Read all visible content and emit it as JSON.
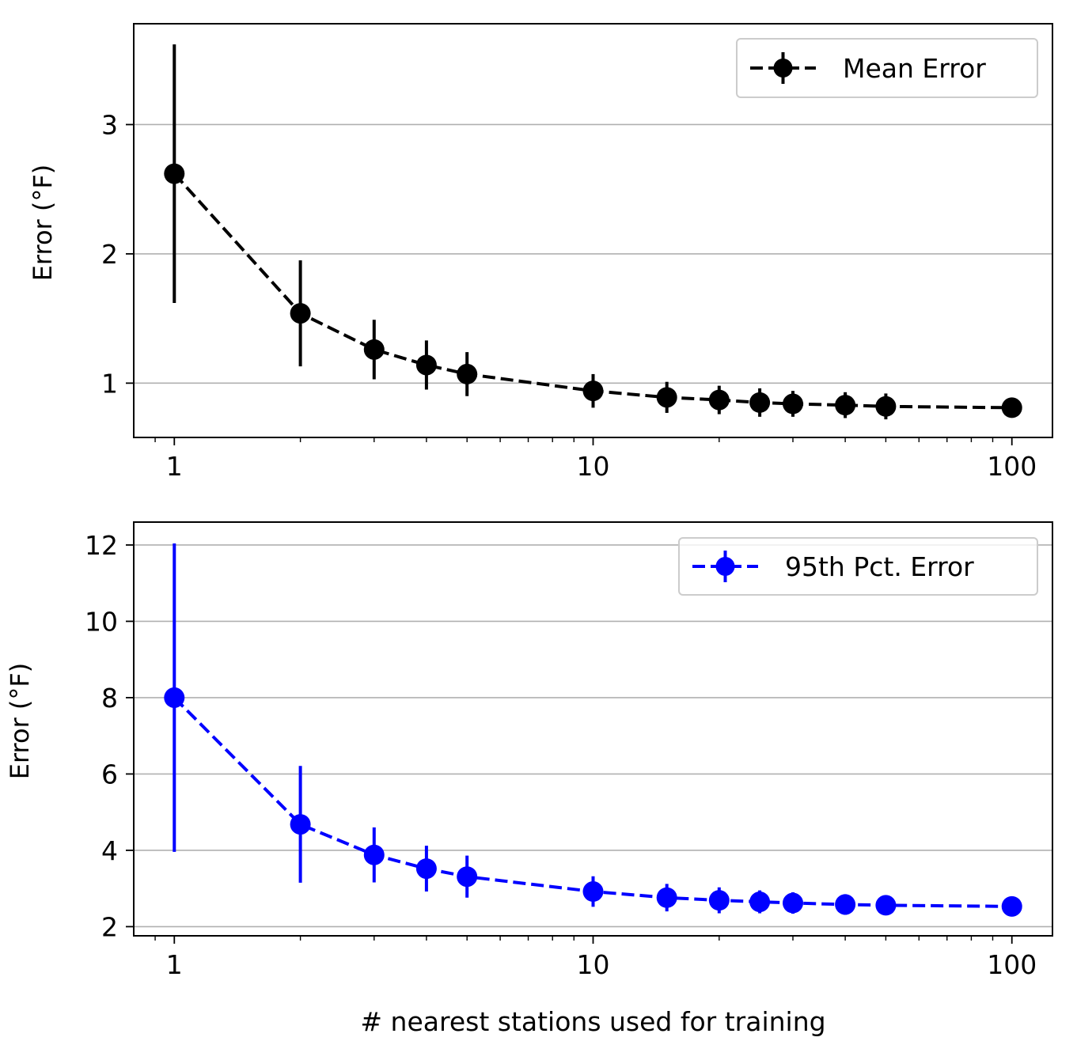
{
  "chart_data": [
    {
      "type": "line",
      "xscale": "log",
      "xlim": [
        0.8,
        125
      ],
      "ylim": [
        0.58,
        3.78
      ],
      "xticks": [
        1,
        10,
        100
      ],
      "xtick_labels": [
        "1",
        "10",
        "100"
      ],
      "yticks": [
        1,
        2,
        3
      ],
      "ytick_labels": [
        "1",
        "2",
        "3"
      ],
      "xlabel": "",
      "ylabel": "Error (°F)",
      "grid": "y-major",
      "legend": "upper right",
      "series": [
        {
          "name": "Mean Error",
          "color": "#000000",
          "linestyle": "dashed",
          "marker": "circle",
          "x": [
            1,
            2,
            3,
            4,
            5,
            10,
            15,
            20,
            25,
            30,
            40,
            50,
            100
          ],
          "y": [
            2.62,
            1.54,
            1.26,
            1.14,
            1.07,
            0.94,
            0.89,
            0.87,
            0.85,
            0.84,
            0.83,
            0.82,
            0.81
          ],
          "yerr": [
            1.0,
            0.41,
            0.23,
            0.19,
            0.17,
            0.13,
            0.12,
            0.11,
            0.11,
            0.1,
            0.1,
            0.1,
            0.05
          ]
        }
      ]
    },
    {
      "type": "line",
      "xscale": "log",
      "xlim": [
        0.8,
        125
      ],
      "ylim": [
        1.76,
        12.6
      ],
      "xticks": [
        1,
        10,
        100
      ],
      "xtick_labels": [
        "1",
        "10",
        "100"
      ],
      "yticks": [
        2,
        4,
        6,
        8,
        10,
        12
      ],
      "ytick_labels": [
        "2",
        "4",
        "6",
        "8",
        "10",
        "12"
      ],
      "xlabel": "# nearest stations used for training",
      "ylabel": "Error (°F)",
      "grid": "y-major",
      "legend": "upper right",
      "series": [
        {
          "name": "95th Pct. Error",
          "color": "#0000ff",
          "linestyle": "dashed",
          "marker": "circle",
          "x": [
            1,
            2,
            3,
            4,
            5,
            10,
            15,
            20,
            25,
            30,
            40,
            50,
            100
          ],
          "y": [
            8.0,
            4.68,
            3.88,
            3.52,
            3.31,
            2.92,
            2.76,
            2.69,
            2.65,
            2.62,
            2.58,
            2.56,
            2.53
          ],
          "yerr": [
            4.04,
            1.53,
            0.72,
            0.6,
            0.55,
            0.4,
            0.36,
            0.34,
            0.3,
            0.28,
            0.27,
            0.25,
            0.2
          ]
        }
      ]
    }
  ]
}
